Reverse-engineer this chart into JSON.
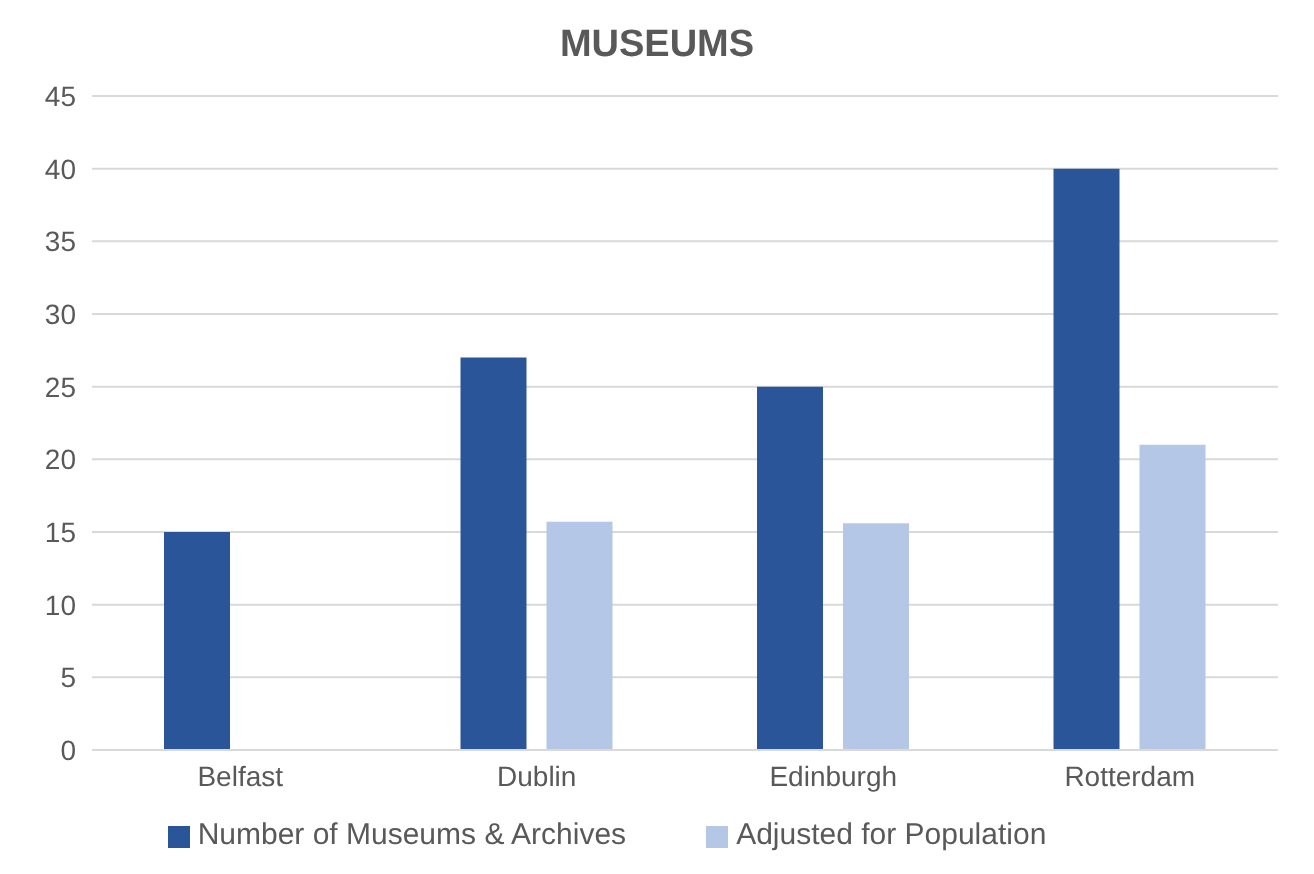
{
  "chart_data": {
    "type": "bar",
    "title": "MUSEUMS",
    "categories": [
      "Belfast",
      "Dublin",
      "Edinburgh",
      "Rotterdam"
    ],
    "series": [
      {
        "name": "Number of Museums & Archives",
        "color": "#2a5599",
        "values": [
          15,
          27,
          25,
          40
        ]
      },
      {
        "name": "Adjusted for Population",
        "color": "#b4c7e7",
        "values": [
          null,
          15.7,
          15.6,
          21
        ]
      }
    ],
    "ylim": [
      0,
      45
    ],
    "yticks": [
      0,
      5,
      10,
      15,
      20,
      25,
      30,
      35,
      40,
      45
    ],
    "grid": "y",
    "legend": "bottom"
  }
}
